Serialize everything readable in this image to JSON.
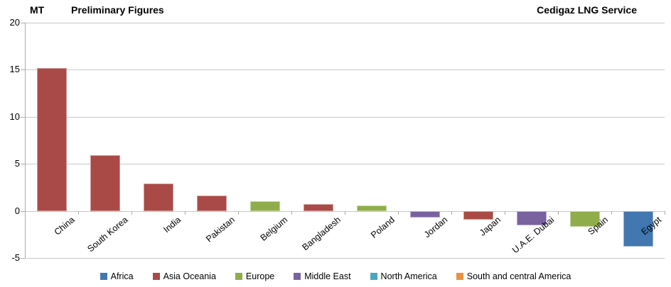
{
  "header": {
    "y_axis_unit": "MT",
    "title": "Preliminary Figures",
    "right_title": "Cedigaz LNG Service"
  },
  "chart_data": {
    "type": "bar",
    "title": "Preliminary Figures",
    "source_label": "Cedigaz LNG Service",
    "y_unit": "MT",
    "categories": [
      "China",
      "South Korea",
      "India",
      "Pakistan",
      "Belgium",
      "Bangladesh",
      "Poland",
      "Jordan",
      "Japan",
      "U.A.E. Dubai",
      "Spain",
      "Egypt"
    ],
    "values": [
      15.2,
      5.9,
      2.9,
      1.6,
      1.0,
      0.7,
      0.6,
      -0.7,
      -0.9,
      -1.5,
      -1.7,
      -3.8
    ],
    "bar_regions": [
      "Asia Oceania",
      "Asia Oceania",
      "Asia Oceania",
      "Asia Oceania",
      "Europe",
      "Asia Oceania",
      "Europe",
      "Middle East",
      "Asia Oceania",
      "Middle East",
      "Europe",
      "Africa"
    ],
    "legend": [
      {
        "label": "Africa",
        "color": "#4277b0"
      },
      {
        "label": "Asia Oceania",
        "color": "#a94a46"
      },
      {
        "label": "Europe",
        "color": "#8fae4b"
      },
      {
        "label": "Middle East",
        "color": "#7a62a0"
      },
      {
        "label": "North America",
        "color": "#4aa6bf"
      },
      {
        "label": "South and central America",
        "color": "#e8923f"
      }
    ],
    "yticks": [
      20,
      15,
      10,
      5,
      0,
      -5
    ],
    "ylim": [
      -5,
      20
    ],
    "grid": true,
    "legend_position": "bottom",
    "category_label_rotation_deg": -40
  },
  "colors": {
    "gridline": "#c8c8c8",
    "axis": "#ababab",
    "text": "#000000",
    "background": "#ffffff"
  }
}
